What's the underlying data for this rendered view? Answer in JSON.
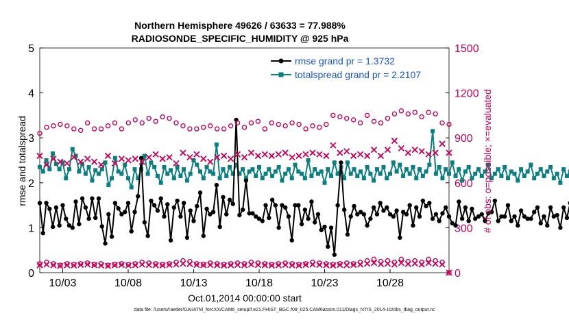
{
  "footnote": "data file: /Users/raeder/DAI/ATM_forcXX/CAM6_setup/f.e21.FHIST_BGC.f09_025.CAM6assim.011/Diags_NTrS_2014-10/obs_diag_output.nc",
  "chart_data": {
    "type": "line",
    "title": "Northern Hemisphere 49626 / 63633 = 77.988%",
    "subtitle": "RADIOSONDE_SPECIFIC_HUMIDITY @ 925 hPa",
    "xlabel": "Oct.01,2014 00:00:00 start",
    "ylabel": "rmse and totalspread",
    "y2label": "# of obs: o=possible; ×=evaluated",
    "x_tick_labels": [
      "10/03",
      "10/08",
      "10/13",
      "10/18",
      "10/23",
      "10/28"
    ],
    "x_tick_positions": [
      3,
      8,
      13,
      18,
      23,
      28
    ],
    "xlim": [
      1.25,
      32.5
    ],
    "ylim": [
      0,
      5
    ],
    "y_ticks": [
      "0",
      "1",
      "2",
      "3",
      "4",
      "5"
    ],
    "y2lim": [
      0,
      1500
    ],
    "y2_ticks": [
      "0",
      "300",
      "600",
      "900",
      "1200",
      "1500"
    ],
    "grid": false,
    "legend_position": "top-right",
    "x_step": 0.25,
    "x_start": 1.25,
    "colors": {
      "rmse": "#000000",
      "spread": "#0a7f7f",
      "obs": "#cc0055",
      "text": "#000000"
    },
    "series": [
      {
        "name": "rmse grand pr = 1.3732",
        "color": "#000000",
        "axis": "left",
        "values": [
          1.55,
          0.88,
          1.55,
          1.42,
          1.02,
          1.45,
          1.05,
          1.5,
          1.2,
          1.05,
          1.0,
          1.58,
          1.08,
          1.65,
          1.45,
          1.2,
          1.65,
          1.22,
          1.65,
          1.03,
          0.65,
          1.3,
          0.8,
          1.55,
          1.43,
          1.3,
          1.35,
          1.55,
          0.92,
          1.35,
          1.7,
          2.55,
          1.12,
          0.82,
          1.6,
          1.5,
          1.38,
          1.65,
          1.25,
          1.52,
          0.72,
          1.45,
          1.6,
          1.25,
          1.55,
          0.78,
          1.38,
          1.15,
          1.48,
          1.78,
          0.82,
          1.42,
          1.3,
          1.35,
          1.95,
          1.02,
          1.68,
          1.3,
          1.62,
          1.53,
          3.4,
          1.28,
          1.4,
          2.05,
          1.32,
          1.32,
          1.25,
          1.2,
          1.15,
          1.5,
          1.22,
          1.62,
          1.5,
          1.0,
          1.5,
          1.45,
          1.25,
          0.72,
          1.5,
          1.5,
          1.08,
          1.4,
          1.2,
          1.58,
          1.12,
          1.3,
          0.95,
          1.02,
          0.58,
          1.0,
          0.4,
          1.5,
          2.45,
          1.4,
          0.85,
          1.25,
          1.48,
          1.3,
          1.35,
          1.3,
          1.05,
          1.2,
          1.45,
          1.3,
          1.55,
          1.38,
          1.45,
          1.3,
          1.25,
          1.38,
          0.78,
          1.35,
          1.3,
          1.5,
          1.05,
          1.45,
          1.25,
          1.6,
          1.48,
          1.55,
          1.2,
          1.3,
          1.15,
          1.32,
          1.45,
          1.25,
          1.1,
          1.05,
          1.58,
          1.2,
          1.45,
          1.15,
          1.42,
          1.2,
          1.25,
          1.3,
          1.15,
          1.32,
          1.35,
          1.6,
          1.15,
          1.25,
          1.25,
          1.5,
          1.15,
          1.25,
          1.05,
          1.38,
          1.25,
          1.2,
          1.2,
          1.35,
          1.45,
          1.1,
          1.25,
          1.05,
          1.45,
          1.25,
          1.28,
          1.0,
          1.45,
          1.22,
          1.55,
          1.2,
          1.4,
          1.1,
          1.55,
          1.45,
          1.2,
          1.3,
          1.05,
          1.2,
          1.0,
          1.55,
          1.65,
          1.38,
          1.25,
          1.6,
          1.22,
          1.62,
          1.1,
          0.95
        ]
      },
      {
        "name": "totalspread grand pr = 2.2107",
        "color": "#0a7f7f",
        "axis": "left",
        "values": [
          2.35,
          2.25,
          2.5,
          2.3,
          2.65,
          2.42,
          2.3,
          2.45,
          2.1,
          2.3,
          2.75,
          2.6,
          2.25,
          2.42,
          2.2,
          2.35,
          2.05,
          2.28,
          2.2,
          2.3,
          2.45,
          1.95,
          2.1,
          2.55,
          2.25,
          2.2,
          2.4,
          2.1,
          1.9,
          2.3,
          2.1,
          2.3,
          2.6,
          2.2,
          2.45,
          2.35,
          2.15,
          2.0,
          2.35,
          2.2,
          2.28,
          2.1,
          2.35,
          2.15,
          2.3,
          2.05,
          2.2,
          2.5,
          2.4,
          2.25,
          2.1,
          2.35,
          2.25,
          2.2,
          2.85,
          2.1,
          2.3,
          2.15,
          2.35,
          2.2,
          2.4,
          2.2,
          2.3,
          2.1,
          2.25,
          2.3,
          2.15,
          2.35,
          2.1,
          2.2,
          2.3,
          2.15,
          2.25,
          2.35,
          2.05,
          2.2,
          2.3,
          2.1,
          2.4,
          2.25,
          2.2,
          2.1,
          2.5,
          2.15,
          2.3,
          2.2,
          2.25,
          2.0,
          2.3,
          2.15,
          2.45,
          2.2,
          2.35,
          2.1,
          2.45,
          2.2,
          2.3,
          2.15,
          2.25,
          2.1,
          2.35,
          2.2,
          2.05,
          2.3,
          2.2,
          2.35,
          2.1,
          2.2,
          2.45,
          2.25,
          2.4,
          2.15,
          2.3,
          2.2,
          2.35,
          2.1,
          2.3,
          2.15,
          2.25,
          2.4,
          3.15,
          2.2,
          2.35,
          2.1,
          2.3,
          2.2,
          2.45,
          2.15,
          2.3,
          2.05,
          2.25,
          2.35,
          2.1,
          2.2,
          2.3,
          2.15,
          2.25,
          2.4,
          2.1,
          2.2,
          2.3,
          2.15,
          2.35,
          2.1,
          2.25,
          2.2,
          2.05,
          2.3,
          2.15,
          2.25,
          2.4,
          2.1,
          2.2,
          2.3,
          2.15,
          2.25,
          2.35,
          2.1,
          2.2,
          2.0,
          2.3,
          2.15,
          2.25,
          2.1,
          2.35,
          2.2,
          2.05,
          2.3,
          2.15,
          2.25,
          2.4,
          2.1,
          2.2,
          2.05,
          2.3,
          2.15,
          2.25,
          2.0,
          2.3,
          2.15,
          2.25,
          2.05
        ]
      },
      {
        "name": "possible",
        "color": "#cc0055",
        "axis": "right",
        "marker": "o",
        "values": [
          930,
          970,
          980,
          990,
          980,
          960,
          950,
          1000,
          960,
          960,
          980,
          1000,
          960,
          1000,
          1020,
          1000,
          1030,
          1010,
          1040,
          1030,
          1000,
          980,
          960,
          960,
          970,
          980,
          960,
          960,
          980,
          1000,
          970,
          1000,
          1010,
          960,
          1000,
          990,
          980,
          1000,
          990,
          960,
          980,
          970,
          990,
          1050,
          1040,
          1030,
          1020,
          1000,
          1050,
          1010,
          1000,
          1030,
          1060,
          1080,
          1060,
          1070,
          1040,
          1070,
          1060,
          1000,
          990
        ]
      },
      {
        "name": "evaluated",
        "color": "#cc0055",
        "axis": "right",
        "marker": "x",
        "values": [
          780,
          720,
          760,
          740,
          730,
          770,
          740,
          760,
          740,
          720,
          780,
          730,
          760,
          750,
          760,
          740,
          770,
          790,
          760,
          770,
          730,
          800,
          770,
          790,
          760,
          740,
          770,
          780,
          760,
          790,
          770,
          800,
          780,
          790,
          780,
          790,
          800,
          770,
          780,
          790,
          800,
          790,
          780,
          850,
          800,
          810,
          780,
          790,
          780,
          820,
          780,
          820,
          880,
          830,
          800,
          820,
          810,
          790,
          800,
          860,
          800
        ]
      },
      {
        "name": "possible-low",
        "color": "#cc0055",
        "axis": "right",
        "marker": "o",
        "values": [
          60,
          70,
          60,
          50,
          60,
          55,
          60,
          65,
          55,
          60,
          50,
          55,
          60,
          55,
          60,
          70,
          65,
          60,
          55,
          60,
          70,
          80,
          75,
          60,
          55,
          65,
          60,
          55,
          60,
          65,
          60,
          70,
          65,
          60,
          55,
          60,
          65,
          60,
          55,
          60,
          70,
          65,
          60,
          55,
          60,
          65,
          60,
          70,
          80,
          90,
          75,
          80,
          70,
          90,
          75,
          80,
          70,
          90,
          80,
          70,
          0
        ]
      },
      {
        "name": "evaluated-low",
        "color": "#cc0055",
        "axis": "right",
        "marker": "x",
        "values": [
          50,
          55,
          50,
          45,
          50,
          48,
          52,
          55,
          50,
          48,
          45,
          50,
          52,
          48,
          50,
          55,
          52,
          50,
          48,
          52,
          55,
          60,
          58,
          52,
          50,
          52,
          50,
          48,
          50,
          52,
          50,
          55,
          52,
          50,
          48,
          50,
          52,
          50,
          48,
          52,
          55,
          52,
          50,
          48,
          52,
          50,
          52,
          55,
          60,
          65,
          58,
          60,
          55,
          65,
          58,
          62,
          55,
          65,
          60,
          55,
          0
        ]
      }
    ]
  }
}
